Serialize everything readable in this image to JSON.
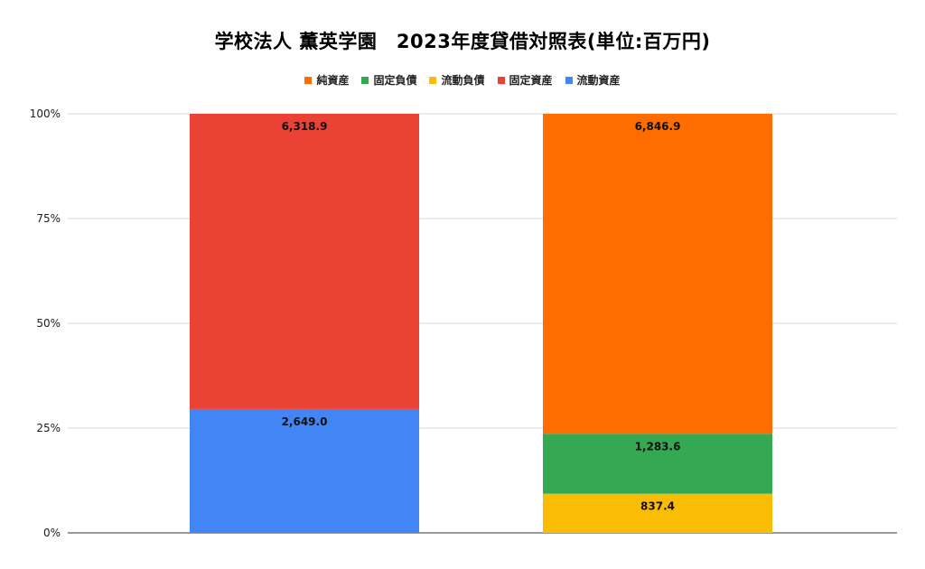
{
  "chart_data": {
    "type": "bar",
    "stacked": "percent",
    "title": "学校法人 薫英学園　2023年度貸借対照表(単位:百万円)",
    "xlabel": "",
    "ylabel": "",
    "ylim": [
      0,
      100
    ],
    "yticks": [
      "0%",
      "25%",
      "50%",
      "75%",
      "100%"
    ],
    "grid": true,
    "legend_position": "top-center",
    "legend": [
      {
        "name": "純資産",
        "color": "#ff6d01"
      },
      {
        "name": "固定負債",
        "color": "#34a853"
      },
      {
        "name": "流動負債",
        "color": "#fbbc04"
      },
      {
        "name": "固定資産",
        "color": "#ea4335"
      },
      {
        "name": "流動資産",
        "color": "#4285f4"
      }
    ],
    "bars": [
      {
        "segments": [
          {
            "name": "流動資産",
            "value": 2649.0,
            "label": "2,649.0",
            "color": "#4285f4"
          },
          {
            "name": "固定資産",
            "value": 6318.9,
            "label": "6,318.9",
            "color": "#ea4335"
          }
        ]
      },
      {
        "segments": [
          {
            "name": "流動負債",
            "value": 837.4,
            "label": "837.4",
            "color": "#fbbc04"
          },
          {
            "name": "固定負債",
            "value": 1283.6,
            "label": "1,283.6",
            "color": "#34a853"
          },
          {
            "name": "純資産",
            "value": 6846.9,
            "label": "6,846.9",
            "color": "#ff6d01"
          }
        ]
      }
    ]
  }
}
